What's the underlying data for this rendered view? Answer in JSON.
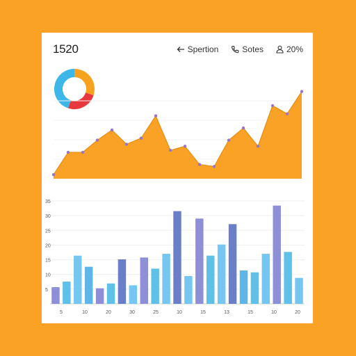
{
  "header": {
    "title": "1520",
    "actions": [
      {
        "icon": "arrow-left-icon",
        "label": "Spertion"
      },
      {
        "icon": "phone-icon",
        "label": "Sotes"
      },
      {
        "icon": "user-icon",
        "label": "20%"
      }
    ]
  },
  "chart_data": [
    {
      "type": "pie",
      "donut": true,
      "values": [
        30,
        25,
        45
      ],
      "colors": [
        "#f7a21e",
        "#e8383f",
        "#3cb7e8"
      ]
    },
    {
      "type": "area",
      "x": [
        0,
        1,
        2,
        3,
        4,
        5,
        6,
        7,
        8,
        9,
        10,
        11,
        12,
        13,
        14,
        15,
        16,
        17
      ],
      "values": [
        2,
        13,
        13,
        19,
        24,
        17,
        20,
        31,
        14,
        16,
        7,
        6,
        19,
        25,
        16,
        36,
        32,
        43
      ],
      "ylim": [
        0,
        48
      ],
      "color": "#f9a225",
      "marker_color": "#9b74c4",
      "grid": true
    },
    {
      "type": "bar",
      "ytick_labels": [
        "35",
        "30",
        "25",
        "20",
        "15",
        "10",
        "5"
      ],
      "xtick_labels": [
        "5",
        "10",
        "20",
        "30",
        "25",
        "10",
        "15",
        "13",
        "15",
        "10",
        "20"
      ],
      "values": [
        4.5,
        6,
        13,
        10,
        4.2,
        5.5,
        12,
        5,
        12.5,
        9.5,
        13.5,
        25,
        7.5,
        23,
        13,
        16,
        21.5,
        9,
        8.5,
        13.5,
        26.5,
        14,
        7
      ],
      "ylim": [
        0,
        30
      ],
      "colors": [
        "#8e8fd6",
        "#5fc0e8",
        "#76c6f2",
        "#5fb5e8",
        "#8e8fd6",
        "#5fc0e8",
        "#6b7fc8",
        "#76c6f2",
        "#8e8fd6",
        "#5fc0e8",
        "#76c6f2",
        "#6b7fc8",
        "#76c6f2",
        "#8e8fd6",
        "#5fc0e8",
        "#76c6f2",
        "#6b7fc8",
        "#5fb5e8",
        "#5fc0e8",
        "#76c6f2",
        "#8e8fd6",
        "#5fc0e8",
        "#76c6f2"
      ],
      "grid": true
    }
  ]
}
